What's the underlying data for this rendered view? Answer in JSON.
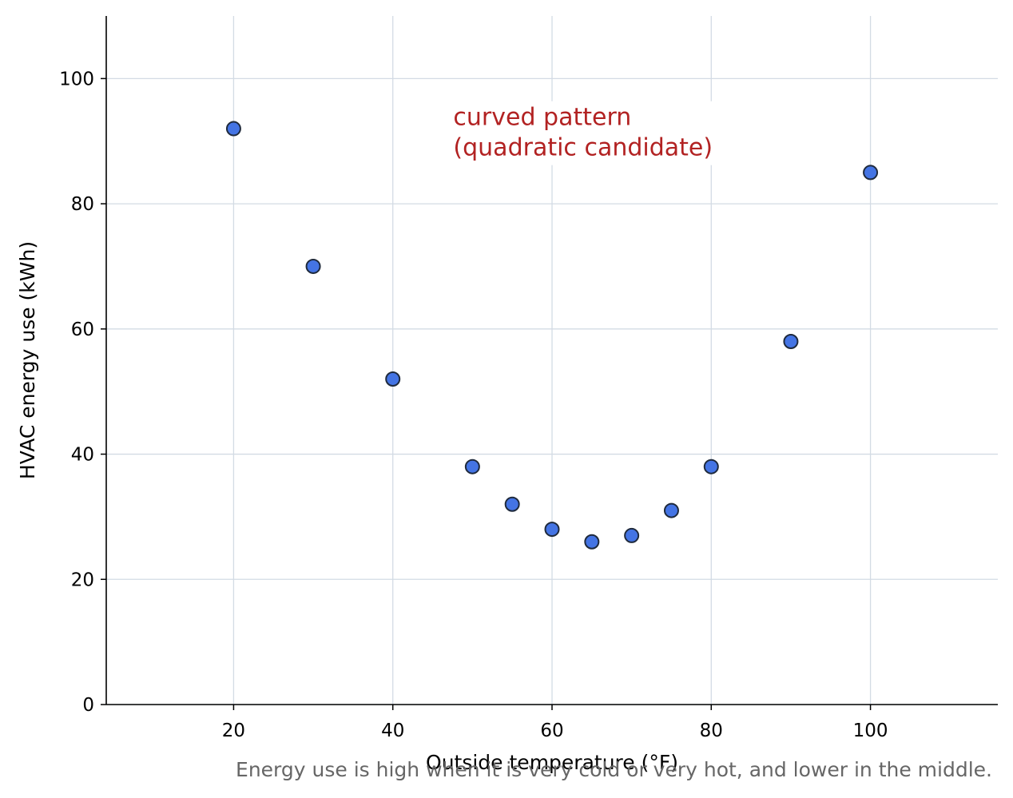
{
  "chart_data": {
    "type": "scatter",
    "title": "",
    "xlabel": "Outside temperature (°F)",
    "ylabel": "HVAC energy use (kWh)",
    "xlim": [
      4,
      116
    ],
    "ylim": [
      0,
      110
    ],
    "x_ticks": [
      "20",
      "40",
      "60",
      "80",
      "100"
    ],
    "y_ticks": [
      "0",
      "20",
      "40",
      "60",
      "80",
      "100"
    ],
    "grid": true,
    "points": [
      {
        "x": 20,
        "y": 92
      },
      {
        "x": 30,
        "y": 70
      },
      {
        "x": 40,
        "y": 52
      },
      {
        "x": 50,
        "y": 38
      },
      {
        "x": 55,
        "y": 32
      },
      {
        "x": 60,
        "y": 28
      },
      {
        "x": 65,
        "y": 26
      },
      {
        "x": 70,
        "y": 27
      },
      {
        "x": 75,
        "y": 31
      },
      {
        "x": 80,
        "y": 38
      },
      {
        "x": 90,
        "y": 58
      },
      {
        "x": 100,
        "y": 85
      }
    ],
    "annotation": {
      "lines": [
        "curved pattern",
        "(quadratic candidate)"
      ],
      "x": 48,
      "y": 96
    },
    "caption": "Energy use is high when it is very cold or very hot, and lower in the middle.",
    "colors": {
      "point_fill": "#4474e4",
      "point_edge": "#1f2a3c",
      "grid": "#d3dbe4",
      "annotation": "#b22222",
      "caption": "#666666"
    }
  }
}
